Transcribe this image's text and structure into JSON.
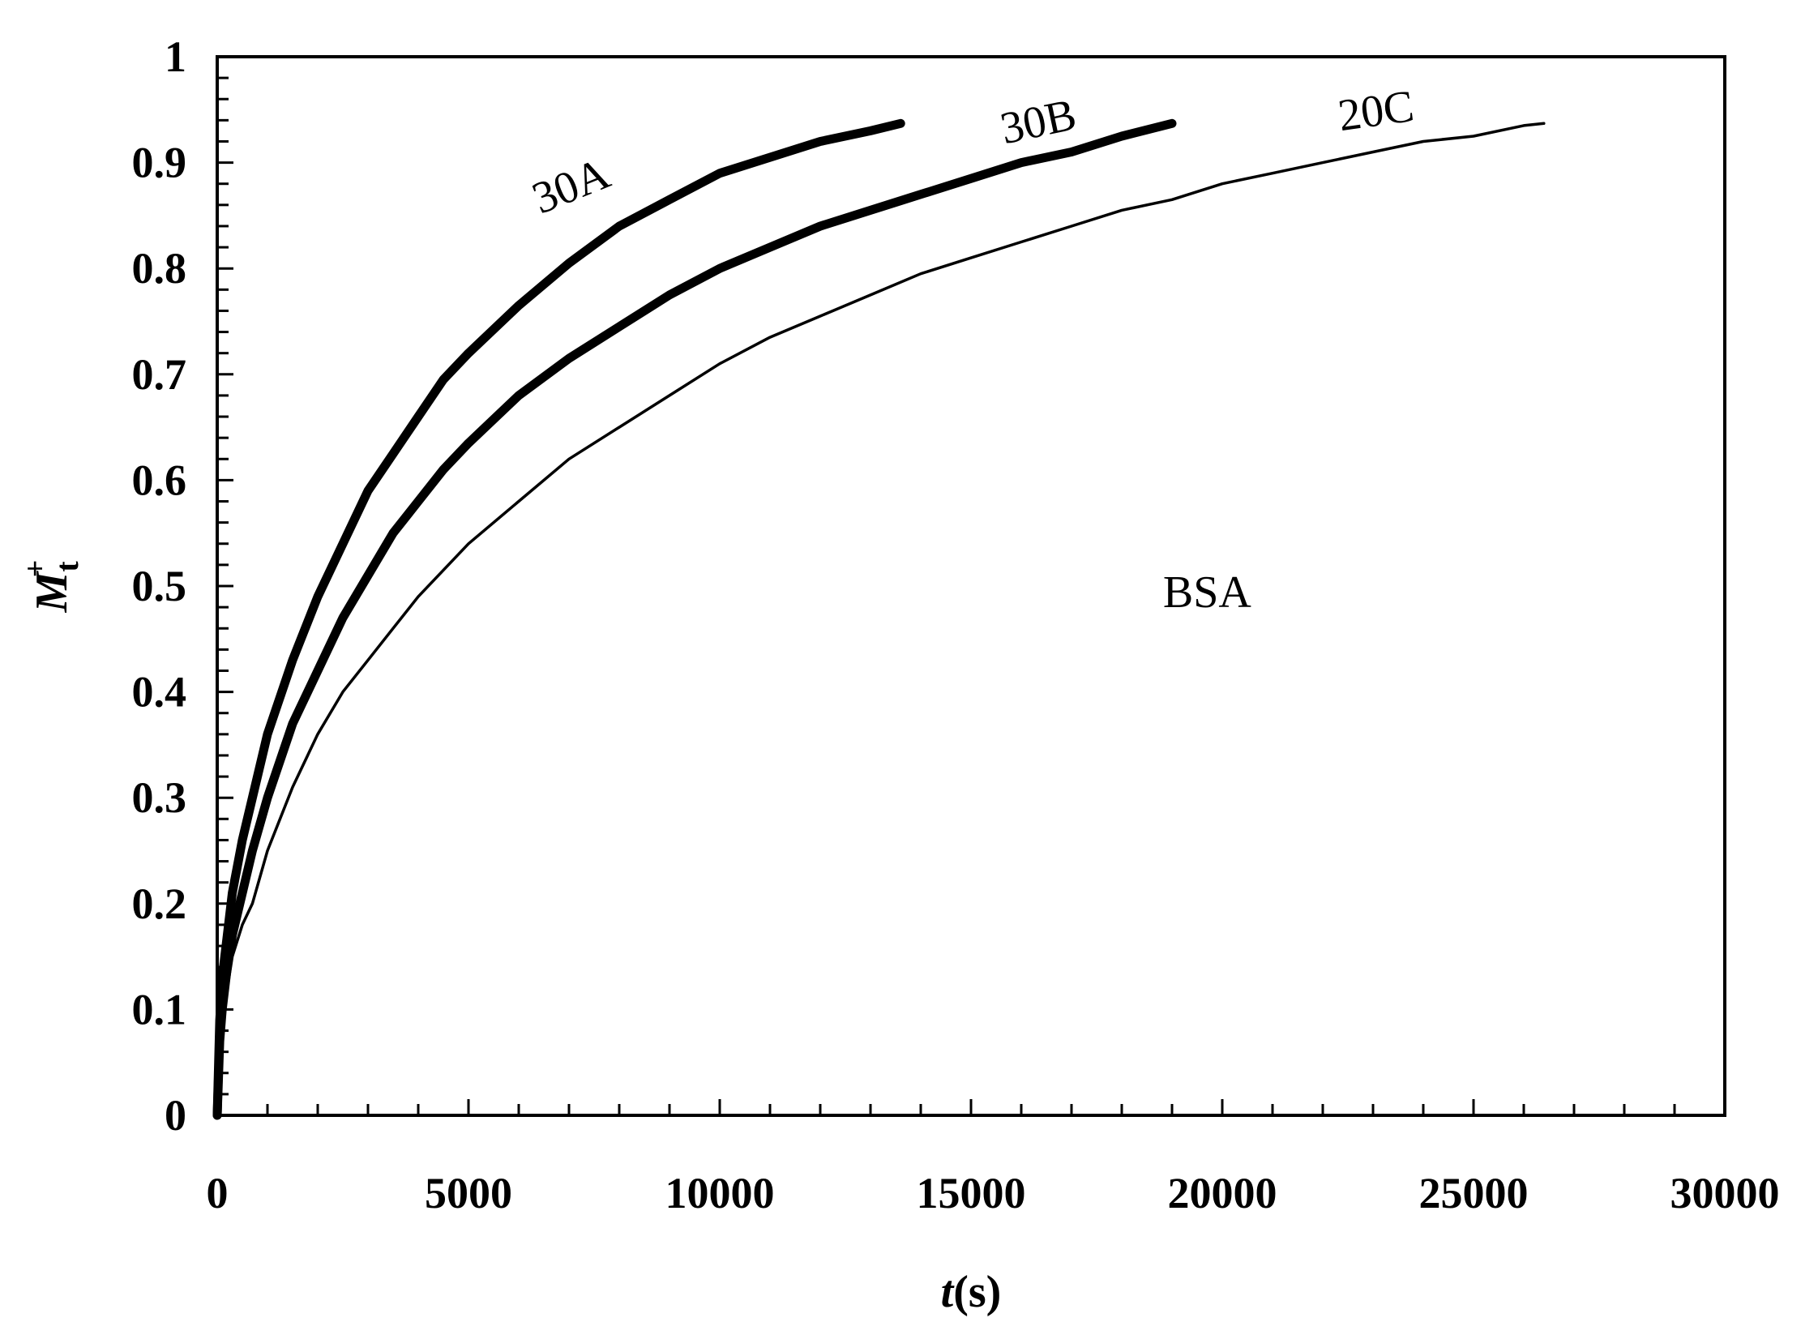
{
  "chart_data": {
    "type": "line",
    "title": "",
    "xlabel": {
      "italic": "t",
      "rest": "(s)"
    },
    "ylabel": {
      "italic": "M",
      "sub": "t",
      "sup": "+"
    },
    "xlim": [
      0,
      30000
    ],
    "ylim": [
      0,
      1
    ],
    "x_ticks": [
      "0",
      "5000",
      "10000",
      "15000",
      "20000",
      "25000",
      "30000"
    ],
    "y_ticks": [
      "0",
      "0.1",
      "0.2",
      "0.3",
      "0.4",
      "0.5",
      "0.6",
      "0.7",
      "0.8",
      "0.9",
      "1"
    ],
    "grid": false,
    "legend": "none",
    "annotations": [
      {
        "text": "30A",
        "x": 7150,
        "y": 0.865,
        "rotate": -22
      },
      {
        "text": "30B",
        "x": 16400,
        "y": 0.925,
        "rotate": -12
      },
      {
        "text": "20C",
        "x": 23100,
        "y": 0.935,
        "rotate": -8
      },
      {
        "text": "BSA",
        "x": 19700,
        "y": 0.48,
        "rotate": 0
      }
    ],
    "series": [
      {
        "label": "30A",
        "style": "thick",
        "points": [
          [
            0,
            0
          ],
          [
            50,
            0.09
          ],
          [
            100,
            0.13
          ],
          [
            200,
            0.17
          ],
          [
            300,
            0.21
          ],
          [
            500,
            0.26
          ],
          [
            700,
            0.3
          ],
          [
            1000,
            0.36
          ],
          [
            1500,
            0.43
          ],
          [
            2000,
            0.49
          ],
          [
            2500,
            0.54
          ],
          [
            3000,
            0.59
          ],
          [
            3500,
            0.625
          ],
          [
            4000,
            0.66
          ],
          [
            4500,
            0.695
          ],
          [
            5000,
            0.72
          ],
          [
            6000,
            0.765
          ],
          [
            7000,
            0.805
          ],
          [
            8000,
            0.84
          ],
          [
            9000,
            0.865
          ],
          [
            10000,
            0.89
          ],
          [
            11000,
            0.905
          ],
          [
            12000,
            0.92
          ],
          [
            13000,
            0.93
          ],
          [
            13600,
            0.937
          ]
        ]
      },
      {
        "label": "30B",
        "style": "thick",
        "points": [
          [
            0,
            0
          ],
          [
            50,
            0.07
          ],
          [
            100,
            0.1
          ],
          [
            200,
            0.14
          ],
          [
            300,
            0.17
          ],
          [
            500,
            0.21
          ],
          [
            700,
            0.25
          ],
          [
            1000,
            0.3
          ],
          [
            1500,
            0.37
          ],
          [
            2000,
            0.42
          ],
          [
            2500,
            0.47
          ],
          [
            3000,
            0.51
          ],
          [
            3500,
            0.55
          ],
          [
            4000,
            0.58
          ],
          [
            4500,
            0.61
          ],
          [
            5000,
            0.635
          ],
          [
            6000,
            0.68
          ],
          [
            7000,
            0.715
          ],
          [
            8000,
            0.745
          ],
          [
            9000,
            0.775
          ],
          [
            10000,
            0.8
          ],
          [
            11000,
            0.82
          ],
          [
            12000,
            0.84
          ],
          [
            13000,
            0.855
          ],
          [
            14000,
            0.87
          ],
          [
            15000,
            0.885
          ],
          [
            16000,
            0.9
          ],
          [
            17000,
            0.91
          ],
          [
            18000,
            0.925
          ],
          [
            19000,
            0.937
          ]
        ]
      },
      {
        "label": "20C",
        "style": "thin",
        "points": [
          [
            0,
            0
          ],
          [
            50,
            0.06
          ],
          [
            100,
            0.09
          ],
          [
            200,
            0.12
          ],
          [
            300,
            0.15
          ],
          [
            500,
            0.18
          ],
          [
            700,
            0.2
          ],
          [
            1000,
            0.25
          ],
          [
            1500,
            0.31
          ],
          [
            2000,
            0.36
          ],
          [
            2500,
            0.4
          ],
          [
            3000,
            0.43
          ],
          [
            3500,
            0.46
          ],
          [
            4000,
            0.49
          ],
          [
            4500,
            0.515
          ],
          [
            5000,
            0.54
          ],
          [
            6000,
            0.58
          ],
          [
            7000,
            0.62
          ],
          [
            8000,
            0.65
          ],
          [
            9000,
            0.68
          ],
          [
            10000,
            0.71
          ],
          [
            11000,
            0.735
          ],
          [
            12000,
            0.755
          ],
          [
            13000,
            0.775
          ],
          [
            14000,
            0.795
          ],
          [
            15000,
            0.81
          ],
          [
            16000,
            0.825
          ],
          [
            17000,
            0.84
          ],
          [
            18000,
            0.855
          ],
          [
            19000,
            0.865
          ],
          [
            20000,
            0.88
          ],
          [
            21000,
            0.89
          ],
          [
            22000,
            0.9
          ],
          [
            23000,
            0.91
          ],
          [
            24000,
            0.92
          ],
          [
            25000,
            0.925
          ],
          [
            26000,
            0.935
          ],
          [
            26400,
            0.937
          ]
        ]
      }
    ]
  }
}
